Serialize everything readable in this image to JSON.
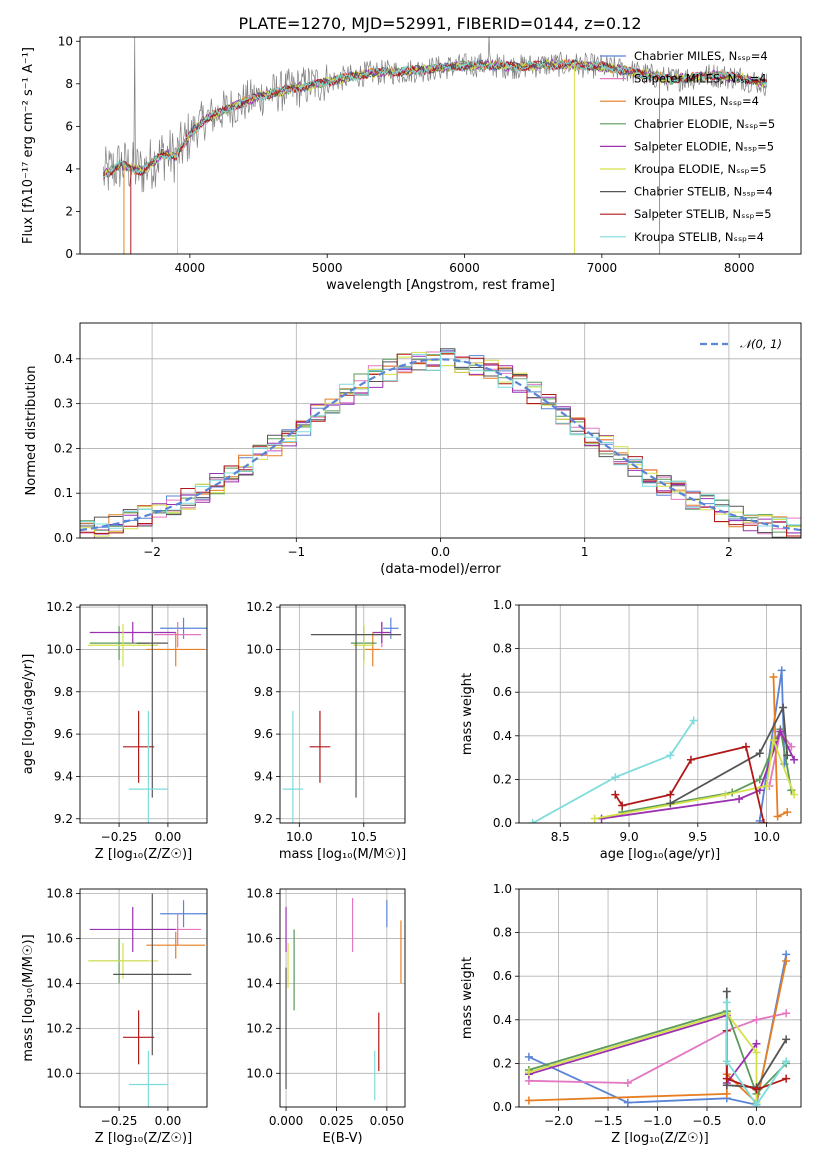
{
  "figure": {
    "title": "PLATE=1270, MJD=52991, FIBERID=0144, z=0.12"
  },
  "chart_data": [
    {
      "id": "spectrum",
      "type": "line",
      "xlabel": "wavelength [Angstrom, rest frame]",
      "ylabel": "Flux [fλ10⁻¹⁷ erg cm⁻² s⁻¹ A⁻¹]",
      "xlim": [
        3200,
        8450
      ],
      "ylim": [
        0,
        10.2
      ],
      "xticks": [
        4000,
        5000,
        6000,
        7000,
        8000
      ],
      "yticks": [
        0,
        2,
        4,
        6,
        8,
        10
      ],
      "legend_loc": "right",
      "legend": [
        {
          "label": "Chabrier MILES, Nₛₛₚ=4",
          "color": "#5a84d6"
        },
        {
          "label": "Salpeter MILES, Nₛₛₚ=4",
          "color": "#e377c2"
        },
        {
          "label": "Kroupa MILES, Nₛₛₚ=4",
          "color": "#e67e22"
        },
        {
          "label": "Chabrier ELODIE, Nₛₛₚ=5",
          "color": "#5a9a5a"
        },
        {
          "label": "Salpeter ELODIE, Nₛₛₚ=5",
          "color": "#9b30b0"
        },
        {
          "label": "Kroupa ELODIE, Nₛₛₚ=5",
          "color": "#d4e04a"
        },
        {
          "label": "Chabrier STELIB, Nₛₛₚ=4",
          "color": "#555555"
        },
        {
          "label": "Salpeter STELIB, Nₛₛₚ=5",
          "color": "#b01818"
        },
        {
          "label": "Kroupa STELIB, Nₛₛₚ=4",
          "color": "#7fdcdc"
        }
      ],
      "data_color": "#808080",
      "model_anchors": [
        [
          3370,
          3.7
        ],
        [
          3500,
          4.2
        ],
        [
          3650,
          3.9
        ],
        [
          3800,
          4.7
        ],
        [
          3900,
          4.6
        ],
        [
          4000,
          5.6
        ],
        [
          4100,
          6.3
        ],
        [
          4300,
          6.9
        ],
        [
          4500,
          7.4
        ],
        [
          4700,
          7.7
        ],
        [
          5000,
          8.1
        ],
        [
          5300,
          8.5
        ],
        [
          5600,
          8.6
        ],
        [
          5900,
          8.8
        ],
        [
          6100,
          8.9
        ],
        [
          6400,
          8.8
        ],
        [
          6600,
          8.9
        ],
        [
          6800,
          8.9
        ],
        [
          7000,
          8.8
        ],
        [
          7200,
          8.6
        ],
        [
          7500,
          8.2
        ],
        [
          7800,
          8.4
        ],
        [
          8000,
          8.3
        ],
        [
          8200,
          8.0
        ]
      ]
    },
    {
      "id": "residuals",
      "type": "histogram",
      "xlabel": "(data-model)/error",
      "ylabel": "Normed distribution",
      "xlim": [
        -2.5,
        2.5
      ],
      "ylim": [
        0,
        0.48
      ],
      "xticks": [
        -2,
        -1,
        0,
        1,
        2
      ],
      "yticks": [
        0.0,
        0.1,
        0.2,
        0.3,
        0.4
      ],
      "legend": [
        {
          "label": "𝒩(0, 1)",
          "color": "#5a84d6"
        }
      ],
      "bin_width": 0.1,
      "series_colors": [
        "#5a84d6",
        "#e377c2",
        "#e67e22",
        "#5a9a5a",
        "#9b30b0",
        "#d4e04a",
        "#555555",
        "#b01818",
        "#7fdcdc"
      ]
    },
    {
      "id": "age_vs_Z",
      "type": "scatter",
      "xlabel": "Z [log₁₀(Z/Z☉)]",
      "ylabel": "age  [log₁₀(age/yr)]",
      "xlim": [
        -0.45,
        0.2
      ],
      "ylim": [
        9.18,
        10.21
      ],
      "xticks": [
        -0.25,
        0.0
      ],
      "yticks": [
        9.2,
        9.4,
        9.6,
        9.8,
        10.0,
        10.2
      ],
      "points": [
        {
          "x": 0.08,
          "y": 10.1,
          "xerr": 0.12,
          "yerr": 0.05,
          "color": "#5a84d6"
        },
        {
          "x": 0.05,
          "y": 10.07,
          "xerr": 0.12,
          "yerr": 0.06,
          "color": "#e377c2"
        },
        {
          "x": 0.04,
          "y": 10.0,
          "xerr": 0.15,
          "yerr": 0.08,
          "color": "#e67e22"
        },
        {
          "x": -0.25,
          "y": 10.03,
          "xerr": 0.15,
          "yerr": 0.08,
          "color": "#5a9a5a"
        },
        {
          "x": -0.18,
          "y": 10.08,
          "xerr": 0.22,
          "yerr": 0.05,
          "color": "#9b30b0"
        },
        {
          "x": -0.23,
          "y": 10.02,
          "xerr": 0.18,
          "yerr": 0.1,
          "color": "#d4e04a"
        },
        {
          "x": -0.08,
          "y": 10.03,
          "xerr": 0.08,
          "yerr": 0.73,
          "color": "#555555"
        },
        {
          "x": -0.15,
          "y": 9.54,
          "xerr": 0.08,
          "yerr": 0.17,
          "color": "#b01818"
        },
        {
          "x": -0.1,
          "y": 9.34,
          "xerr": 0.1,
          "yerr": 0.37,
          "color": "#7fdcdc"
        }
      ]
    },
    {
      "id": "age_vs_mass",
      "type": "scatter",
      "xlabel": "mass [log₁₀(M/M☉)]",
      "ylabel": "",
      "xlim": [
        9.85,
        10.82
      ],
      "ylim": [
        9.18,
        10.21
      ],
      "xticks": [
        10.0,
        10.5
      ],
      "yticks": [
        9.2,
        9.4,
        9.6,
        9.8,
        10.0,
        10.2
      ],
      "points": [
        {
          "x": 10.71,
          "y": 10.1,
          "xerr": 0.06,
          "yerr": 0.05,
          "color": "#5a84d6"
        },
        {
          "x": 10.64,
          "y": 10.07,
          "xerr": 0.07,
          "yerr": 0.06,
          "color": "#e377c2"
        },
        {
          "x": 10.57,
          "y": 10.0,
          "xerr": 0.06,
          "yerr": 0.08,
          "color": "#e67e22"
        },
        {
          "x": 10.5,
          "y": 10.03,
          "xerr": 0.1,
          "yerr": 0.08,
          "color": "#5a9a5a"
        },
        {
          "x": 10.64,
          "y": 10.08,
          "xerr": 0.07,
          "yerr": 0.05,
          "color": "#9b30b0"
        },
        {
          "x": 10.5,
          "y": 10.02,
          "xerr": 0.08,
          "yerr": 0.1,
          "color": "#d4e04a"
        },
        {
          "x": 10.44,
          "y": 10.07,
          "xerr": 0.35,
          "yerr": 0.77,
          "color": "#555555"
        },
        {
          "x": 10.16,
          "y": 9.54,
          "xerr": 0.08,
          "yerr": 0.17,
          "color": "#b01818"
        },
        {
          "x": 9.95,
          "y": 9.34,
          "xerr": 0.08,
          "yerr": 0.37,
          "color": "#7fdcdc"
        }
      ]
    },
    {
      "id": "weight_vs_age",
      "type": "line",
      "xlabel": "age  [log₁₀(age/yr)]",
      "ylabel": "mass weight",
      "xlim": [
        8.2,
        10.25
      ],
      "ylim": [
        0.0,
        1.0
      ],
      "xticks": [
        8.5,
        9.0,
        9.5,
        10.0
      ],
      "yticks": [
        0.0,
        0.2,
        0.4,
        0.6,
        0.8,
        1.0
      ],
      "series": [
        {
          "color": "#5a84d6",
          "points": [
            [
              9.95,
              0.01
            ],
            [
              10.11,
              0.7
            ],
            [
              10.13,
              0.27
            ]
          ]
        },
        {
          "color": "#e377c2",
          "points": [
            [
              10.02,
              0.17
            ],
            [
              10.1,
              0.42
            ],
            [
              10.18,
              0.35
            ]
          ]
        },
        {
          "color": "#e67e22",
          "points": [
            [
              10.05,
              0.67
            ],
            [
              10.08,
              0.03
            ],
            [
              10.15,
              0.05
            ]
          ]
        },
        {
          "color": "#5a9a5a",
          "points": [
            [
              8.95,
              0.05
            ],
            [
              9.75,
              0.14
            ],
            [
              9.95,
              0.2
            ],
            [
              10.1,
              0.43
            ],
            [
              10.18,
              0.15
            ]
          ]
        },
        {
          "color": "#9b30b0",
          "points": [
            [
              8.8,
              0.02
            ],
            [
              9.8,
              0.11
            ],
            [
              9.95,
              0.15
            ],
            [
              10.1,
              0.42
            ],
            [
              10.2,
              0.29
            ]
          ]
        },
        {
          "color": "#d4e04a",
          "points": [
            [
              8.75,
              0.02
            ],
            [
              9.7,
              0.13
            ],
            [
              10.0,
              0.17
            ],
            [
              10.05,
              0.38
            ],
            [
              10.2,
              0.13
            ]
          ]
        },
        {
          "color": "#555555",
          "points": [
            [
              9.3,
              0.09
            ],
            [
              9.95,
              0.32
            ],
            [
              10.12,
              0.53
            ],
            [
              10.15,
              0.31
            ]
          ]
        },
        {
          "color": "#b01818",
          "points": [
            [
              8.9,
              0.13
            ],
            [
              8.95,
              0.08
            ],
            [
              9.3,
              0.13
            ],
            [
              9.45,
              0.29
            ],
            [
              9.85,
              0.35
            ],
            [
              9.98,
              0.0
            ]
          ]
        },
        {
          "color": "#7fdcdc",
          "points": [
            [
              8.3,
              0.0
            ],
            [
              8.9,
              0.21
            ],
            [
              9.3,
              0.31
            ],
            [
              9.47,
              0.47
            ]
          ]
        }
      ]
    },
    {
      "id": "mass_vs_Z",
      "type": "scatter",
      "xlabel": "Z [log₁₀(Z/Z☉)]",
      "ylabel": "mass [log₁₀(M/M☉)]",
      "xlim": [
        -0.45,
        0.2
      ],
      "ylim": [
        9.85,
        10.82
      ],
      "xticks": [
        -0.25,
        0.0
      ],
      "yticks": [
        10.0,
        10.2,
        10.4,
        10.6,
        10.8
      ],
      "points": [
        {
          "x": 0.08,
          "y": 10.71,
          "xerr": 0.12,
          "yerr": 0.06,
          "color": "#5a84d6"
        },
        {
          "x": 0.05,
          "y": 10.64,
          "xerr": 0.12,
          "yerr": 0.07,
          "color": "#e377c2"
        },
        {
          "x": 0.04,
          "y": 10.57,
          "xerr": 0.15,
          "yerr": 0.06,
          "color": "#e67e22"
        },
        {
          "x": -0.25,
          "y": 10.5,
          "xerr": 0.15,
          "yerr": 0.1,
          "color": "#5a9a5a"
        },
        {
          "x": -0.18,
          "y": 10.64,
          "xerr": 0.22,
          "yerr": 0.1,
          "color": "#9b30b0"
        },
        {
          "x": -0.23,
          "y": 10.5,
          "xerr": 0.18,
          "yerr": 0.08,
          "color": "#d4e04a"
        },
        {
          "x": -0.08,
          "y": 10.44,
          "xerr": 0.2,
          "yerr": 0.36,
          "color": "#555555"
        },
        {
          "x": -0.15,
          "y": 10.16,
          "xerr": 0.08,
          "yerr": 0.12,
          "color": "#b01818"
        },
        {
          "x": -0.1,
          "y": 9.95,
          "xerr": 0.1,
          "yerr": 0.15,
          "color": "#7fdcdc"
        }
      ]
    },
    {
      "id": "mass_vs_ebv",
      "type": "scatter",
      "xlabel": "E(B-V)",
      "ylabel": "",
      "xlim": [
        -0.003,
        0.059
      ],
      "ylim": [
        9.85,
        10.82
      ],
      "xticks": [
        0.0,
        0.025,
        0.05
      ],
      "yticks": [
        10.0,
        10.2,
        10.4,
        10.6,
        10.8
      ],
      "points": [
        {
          "x": 0.05,
          "y": 10.71,
          "xerr": 0,
          "yerr": 0.06,
          "color": "#5a84d6"
        },
        {
          "x": 0.033,
          "y": 10.66,
          "xerr": 0,
          "yerr": 0.12,
          "color": "#e377c2"
        },
        {
          "x": 0.057,
          "y": 10.54,
          "xerr": 0,
          "yerr": 0.14,
          "color": "#e67e22"
        },
        {
          "x": 0.004,
          "y": 10.46,
          "xerr": 0,
          "yerr": 0.18,
          "color": "#5a9a5a"
        },
        {
          "x": 0.0,
          "y": 10.64,
          "xerr": 0,
          "yerr": 0.1,
          "color": "#9b30b0"
        },
        {
          "x": 0.001,
          "y": 10.48,
          "xerr": 0,
          "yerr": 0.1,
          "color": "#d4e04a"
        },
        {
          "x": 0.0,
          "y": 10.2,
          "xerr": 0,
          "yerr": 0.27,
          "color": "#555555"
        },
        {
          "x": 0.046,
          "y": 10.14,
          "xerr": 0,
          "yerr": 0.13,
          "color": "#b01818"
        },
        {
          "x": 0.044,
          "y": 9.99,
          "xerr": 0,
          "yerr": 0.11,
          "color": "#7fdcdc"
        }
      ]
    },
    {
      "id": "weight_vs_Z",
      "type": "line",
      "xlabel": "Z [log₁₀(Z/Z☉)]",
      "ylabel": "mass weight",
      "xlim": [
        -2.4,
        0.45
      ],
      "ylim": [
        0.0,
        1.0
      ],
      "xticks": [
        -2.0,
        -1.5,
        -1.0,
        -0.5,
        0.0
      ],
      "yticks": [
        0.0,
        0.2,
        0.4,
        0.6,
        0.8,
        1.0
      ],
      "series": [
        {
          "color": "#5a84d6",
          "points": [
            [
              -2.3,
              0.23
            ],
            [
              -1.3,
              0.02
            ],
            [
              -0.3,
              0.04
            ],
            [
              0.0,
              0.01
            ],
            [
              0.3,
              0.7
            ]
          ]
        },
        {
          "color": "#e377c2",
          "points": [
            [
              -2.3,
              0.12
            ],
            [
              -1.3,
              0.11
            ],
            [
              -0.3,
              0.35
            ],
            [
              0.0,
              0.4
            ],
            [
              0.3,
              0.43
            ]
          ]
        },
        {
          "color": "#e67e22",
          "points": [
            [
              -2.3,
              0.03
            ],
            [
              -0.3,
              0.06
            ],
            [
              -0.3,
              0.15
            ],
            [
              0.0,
              0.02
            ],
            [
              0.3,
              0.67
            ]
          ]
        },
        {
          "color": "#5a9a5a",
          "points": [
            [
              -2.3,
              0.17
            ],
            [
              -0.3,
              0.44
            ],
            [
              0.0,
              0.06
            ],
            [
              0.3,
              0.2
            ]
          ]
        },
        {
          "color": "#9b30b0",
          "points": [
            [
              -2.3,
              0.15
            ],
            [
              -0.3,
              0.42
            ],
            [
              -0.3,
              0.11
            ],
            [
              0.0,
              0.29
            ]
          ]
        },
        {
          "color": "#d4e04a",
          "points": [
            [
              -2.3,
              0.16
            ],
            [
              -0.3,
              0.43
            ],
            [
              0.0,
              0.25
            ],
            [
              0.0,
              0.02
            ]
          ]
        },
        {
          "color": "#555555",
          "points": [
            [
              -0.3,
              0.53
            ],
            [
              -0.3,
              0.1
            ],
            [
              0.0,
              0.09
            ],
            [
              0.3,
              0.31
            ]
          ]
        },
        {
          "color": "#b01818",
          "points": [
            [
              -0.3,
              0.35
            ],
            [
              -0.3,
              0.13
            ],
            [
              0.0,
              0.08
            ],
            [
              0.3,
              0.13
            ]
          ]
        },
        {
          "color": "#7fdcdc",
          "points": [
            [
              -0.3,
              0.48
            ],
            [
              -0.3,
              0.21
            ],
            [
              0.0,
              0.01
            ],
            [
              0.3,
              0.21
            ]
          ]
        }
      ]
    }
  ]
}
